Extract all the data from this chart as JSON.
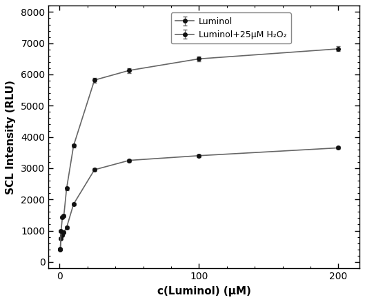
{
  "luminol_x": [
    0.5,
    1,
    2,
    3,
    5,
    10,
    25,
    50,
    100,
    200
  ],
  "luminol_y": [
    400,
    750,
    850,
    950,
    1100,
    1850,
    2950,
    3250,
    3400,
    3650
  ],
  "luminol_yerr": [
    25,
    30,
    30,
    30,
    35,
    45,
    45,
    45,
    45,
    45
  ],
  "luminol_h2o2_x": [
    0.5,
    1,
    2,
    3,
    5,
    10,
    25,
    50,
    100,
    200
  ],
  "luminol_h2o2_y": [
    420,
    980,
    1430,
    1470,
    2350,
    3720,
    5820,
    6130,
    6500,
    6820
  ],
  "luminol_h2o2_yerr": [
    25,
    35,
    45,
    45,
    55,
    55,
    75,
    75,
    75,
    75
  ],
  "xlabel": "c(Luminol) (μM)",
  "ylabel": "SCL Intensity (RLU)",
  "legend1": "Luminol",
  "legend2": "Luminol+25μM H₂O₂",
  "xlim": [
    -8,
    215
  ],
  "ylim": [
    -200,
    8200
  ],
  "yticks": [
    0,
    1000,
    2000,
    3000,
    4000,
    5000,
    6000,
    7000,
    8000
  ],
  "xticks": [
    0,
    100,
    200
  ],
  "line_color": "#666666",
  "marker_color": "#111111",
  "bg_color": "#ffffff"
}
